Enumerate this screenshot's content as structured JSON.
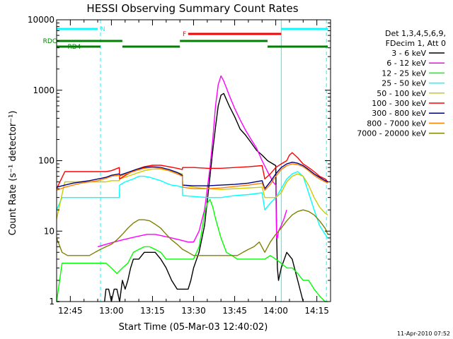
{
  "chart_data": {
    "type": "line",
    "title": "HESSI Observing Summary Count Rates",
    "xlabel": "Start Time (05-Mar-03 12:40:02)",
    "ylabel": "Count Rate (s⁻¹ detector⁻¹)",
    "x_unit": "minutes",
    "xlim": [
      0,
      100
    ],
    "ylim": [
      1,
      10000
    ],
    "yscale": "log",
    "grid": false,
    "x_ticks": [
      {
        "value": 5,
        "label": "12:45"
      },
      {
        "value": 20,
        "label": "13:00"
      },
      {
        "value": 35,
        "label": "13:15"
      },
      {
        "value": 50,
        "label": "13:30"
      },
      {
        "value": 65,
        "label": "13:45"
      },
      {
        "value": 80,
        "label": "14:00"
      },
      {
        "value": 95,
        "label": "14:15"
      }
    ],
    "y_ticks": [
      {
        "value": 1,
        "label": "1"
      },
      {
        "value": 10,
        "label": "10"
      },
      {
        "value": 100,
        "label": "100"
      },
      {
        "value": 1000,
        "label": "1000"
      },
      {
        "value": 10000,
        "label": "10000"
      }
    ],
    "legend": {
      "position": "right",
      "header": [
        "Det 1,3,4,5,6,9,",
        "FDecim 1, Att 0"
      ]
    },
    "series": [
      {
        "name": "3 - 6 keV",
        "color": "#000000",
        "x": [
          0,
          1,
          2,
          17,
          17.5,
          18,
          19,
          20,
          21,
          22,
          23,
          24,
          25,
          26,
          27,
          28,
          30,
          32,
          34,
          36,
          38,
          40,
          42,
          44,
          46,
          48,
          49,
          50,
          52,
          54,
          56,
          57,
          58,
          59,
          60,
          61,
          63,
          65,
          67,
          69,
          71,
          73,
          75,
          77,
          79,
          80,
          80.3,
          80.6,
          81,
          82,
          84,
          86,
          88,
          90,
          92,
          95,
          99
        ],
        "y": [
          1,
          1,
          null,
          null,
          1,
          1.5,
          1.5,
          1,
          1.5,
          1.5,
          1,
          2,
          1.5,
          2,
          3,
          4,
          4,
          5,
          5,
          5,
          4,
          3,
          2,
          1.5,
          1.5,
          1.5,
          2,
          3,
          5,
          12,
          60,
          140,
          300,
          600,
          850,
          900,
          600,
          420,
          280,
          230,
          180,
          140,
          120,
          100,
          90,
          85,
          9,
          3,
          2,
          3,
          5,
          4,
          2,
          1,
          null,
          null,
          null
        ]
      },
      {
        "name": "6 - 12 keV",
        "color": "#ff00ff",
        "x": [
          0,
          3,
          6,
          9,
          12,
          15,
          18,
          21,
          24,
          27,
          30,
          33,
          36,
          39,
          42,
          45,
          48,
          50,
          52,
          54,
          56,
          57,
          58,
          59,
          60,
          61,
          63,
          65,
          67,
          69,
          71,
          73,
          75,
          77,
          79,
          80,
          80.3,
          80.6,
          81,
          82,
          83,
          84,
          86,
          88,
          89
        ],
        "y": [
          null,
          null,
          null,
          null,
          null,
          6,
          6.5,
          7,
          7.5,
          8,
          8.5,
          9,
          9,
          8.5,
          8,
          7.5,
          7,
          7,
          10,
          20,
          80,
          200,
          600,
          1200,
          1600,
          1350,
          850,
          550,
          380,
          270,
          200,
          150,
          100,
          70,
          50,
          45,
          8,
          8,
          10,
          12,
          15,
          20,
          null,
          null,
          null
        ]
      },
      {
        "name": "12 - 25 keV",
        "color": "#00ff00",
        "x": [
          0,
          2,
          4,
          6,
          8,
          10,
          12,
          14,
          16,
          18,
          20,
          22,
          24,
          26,
          28,
          30,
          32,
          34,
          36,
          38,
          40,
          42,
          44,
          46,
          48,
          50,
          52,
          53,
          54,
          55,
          56,
          57,
          58,
          60,
          62,
          64,
          66,
          68,
          70,
          72,
          74,
          76,
          78,
          80,
          82,
          84,
          86,
          88,
          90,
          92,
          94,
          96,
          98,
          99
        ],
        "y": [
          1,
          3.5,
          3.5,
          3.5,
          3.5,
          3.5,
          3.5,
          3.5,
          3.5,
          3.5,
          3,
          2.5,
          3,
          3.5,
          5,
          5.5,
          6,
          6,
          5.5,
          5,
          4,
          4,
          4,
          4,
          4,
          4,
          6,
          10,
          18,
          25,
          28,
          22,
          15,
          8,
          5,
          4.5,
          4,
          4,
          4,
          4,
          4,
          4,
          4.5,
          4,
          3.5,
          3,
          3,
          2.5,
          2,
          2,
          1.5,
          1.2,
          1,
          1
        ]
      },
      {
        "name": "25 - 50 keV",
        "color": "#00ffff",
        "x": [
          0,
          2,
          5,
          8,
          11,
          14,
          17,
          20,
          22.9,
          23,
          25,
          28,
          30,
          32,
          34,
          36,
          38,
          40,
          42,
          44,
          45.9,
          46,
          50,
          55,
          60,
          65,
          70,
          75,
          76,
          78,
          80,
          82,
          84,
          86,
          88,
          90,
          92,
          94,
          96,
          98,
          99
        ],
        "y": [
          20,
          30,
          30,
          30,
          30,
          30,
          30,
          30,
          30,
          45,
          50,
          55,
          60,
          60,
          58,
          55,
          52,
          48,
          45,
          44,
          42,
          32,
          31,
          30,
          30,
          32,
          33,
          35,
          20,
          25,
          30,
          40,
          55,
          65,
          70,
          60,
          35,
          20,
          12,
          9,
          8
        ]
      },
      {
        "name": "50 - 100 keV",
        "color": "#cccc00",
        "x": [
          0,
          3,
          6,
          9,
          12,
          15,
          18,
          20,
          22.9,
          23,
          26,
          29,
          32,
          35,
          38,
          41,
          44,
          45.9,
          46,
          50,
          55,
          60,
          65,
          70,
          75,
          76,
          78,
          80,
          82,
          84,
          86,
          88,
          90,
          92,
          94,
          96,
          98,
          99
        ],
        "y": [
          15,
          50,
          50,
          50,
          50,
          50,
          50,
          52,
          52,
          55,
          60,
          66,
          72,
          76,
          76,
          72,
          68,
          65,
          45,
          42,
          40,
          39,
          40,
          41,
          42,
          30,
          30,
          30,
          35,
          50,
          60,
          65,
          60,
          45,
          30,
          22,
          18,
          17
        ]
      },
      {
        "name": "100 - 300 keV",
        "color": "#ff0000",
        "x": [
          0,
          3,
          6,
          9,
          12,
          15,
          18,
          20,
          22.9,
          23,
          26,
          29,
          32,
          35,
          38,
          41,
          44,
          45.9,
          46,
          50,
          55,
          60,
          65,
          70,
          75,
          76,
          78,
          80,
          82,
          84,
          85,
          86,
          88,
          90,
          92,
          94,
          96,
          98,
          99
        ],
        "y": [
          40,
          70,
          70,
          70,
          70,
          70,
          70,
          72,
          80,
          55,
          65,
          75,
          82,
          86,
          86,
          82,
          78,
          75,
          80,
          80,
          78,
          78,
          80,
          82,
          85,
          55,
          65,
          80,
          90,
          100,
          120,
          130,
          110,
          90,
          80,
          70,
          60,
          55,
          50
        ]
      },
      {
        "name": "300 - 800 keV",
        "color": "#000080",
        "x": [
          0,
          3,
          6,
          9,
          12,
          15,
          18,
          20,
          22.9,
          23,
          26,
          29,
          32,
          35,
          38,
          41,
          44,
          45.9,
          46,
          50,
          55,
          60,
          65,
          70,
          75,
          76,
          78,
          80,
          82,
          84,
          86,
          88,
          90,
          92,
          94,
          96,
          98,
          99
        ],
        "y": [
          42,
          45,
          48,
          50,
          52,
          55,
          58,
          62,
          65,
          62,
          68,
          75,
          80,
          82,
          80,
          75,
          68,
          62,
          45,
          44,
          44,
          45,
          46,
          48,
          52,
          40,
          50,
          65,
          80,
          90,
          95,
          92,
          85,
          75,
          65,
          58,
          52,
          50
        ]
      },
      {
        "name": "800 - 7000 keV",
        "color": "#ff8000",
        "x": [
          0,
          3,
          6,
          9,
          12,
          15,
          18,
          20,
          22.9,
          23,
          26,
          29,
          32,
          35,
          38,
          41,
          44,
          45.9,
          46,
          50,
          55,
          60,
          65,
          70,
          75,
          76,
          78,
          80,
          82,
          84,
          86,
          88,
          90,
          92,
          94,
          96,
          98,
          99
        ],
        "y": [
          38,
          42,
          45,
          48,
          50,
          52,
          56,
          60,
          62,
          60,
          66,
          72,
          78,
          80,
          78,
          72,
          65,
          60,
          42,
          40,
          40,
          41,
          43,
          45,
          48,
          38,
          46,
          60,
          75,
          85,
          90,
          88,
          82,
          72,
          62,
          55,
          50,
          48
        ]
      },
      {
        "name": "7000 - 20000 keV",
        "color": "#808000",
        "x": [
          0,
          2,
          4,
          6,
          8,
          10,
          12,
          14,
          16,
          18,
          20,
          22,
          24,
          26,
          28,
          30,
          32,
          34,
          36,
          38,
          40,
          42,
          44,
          46,
          48,
          50,
          52,
          54,
          56,
          58,
          60,
          62,
          64,
          66,
          68,
          70,
          72,
          74,
          76,
          78,
          80,
          82,
          84,
          86,
          88,
          90,
          92,
          94,
          96,
          98,
          99
        ],
        "y": [
          8,
          5,
          4.5,
          4.5,
          4.5,
          4.5,
          4.5,
          5,
          5.5,
          6,
          6.5,
          7.5,
          9,
          11,
          13,
          14.5,
          14.5,
          14,
          12.5,
          11,
          9,
          7.5,
          6.5,
          5.5,
          5,
          4.5,
          4.5,
          4.5,
          4.5,
          4.5,
          4.5,
          4.5,
          4.5,
          4.5,
          5,
          5.5,
          6,
          7,
          5,
          7,
          9,
          11,
          14,
          17,
          19,
          20,
          19,
          17,
          14,
          11,
          9
        ]
      }
    ],
    "flag_bars": [
      {
        "label": "N",
        "color": "#00ffff",
        "x_start": 0,
        "x_end": 15,
        "label_x": 16,
        "y_level": 1
      },
      {
        "label": "",
        "color": "#00ffff",
        "x_start": 82,
        "x_end": 99,
        "label_x": null,
        "y_level": 1
      },
      {
        "label": "F",
        "color": "#ff0000",
        "x_start": 48,
        "x_end": 82,
        "label_x": 46,
        "y_level": 2
      },
      {
        "label": "RDC",
        "color": "#008000",
        "x_start": 0,
        "x_end": 24,
        "label_x": -5,
        "y_level": 3
      },
      {
        "label": "",
        "color": "#008000",
        "x_start": 45,
        "x_end": 77,
        "label_x": null,
        "y_level": 3
      },
      {
        "label": "RD4",
        "color": "#008000",
        "x_start": 0,
        "x_end": 16,
        "label_x": 4,
        "y_level": 4
      },
      {
        "label": "",
        "color": "#008000",
        "x_start": 24,
        "x_end": 45,
        "label_x": null,
        "y_level": 4
      },
      {
        "label": "",
        "color": "#008000",
        "x_start": 77,
        "x_end": 99,
        "label_x": null,
        "y_level": 4
      }
    ],
    "vlines": [
      {
        "x": 0,
        "style": "solid"
      },
      {
        "x": 16,
        "style": "dashed"
      },
      {
        "x": 82,
        "style": "solid"
      },
      {
        "x": 98.5,
        "style": "dashed"
      }
    ],
    "timestamp": "11-Apr-2010 07:52"
  }
}
